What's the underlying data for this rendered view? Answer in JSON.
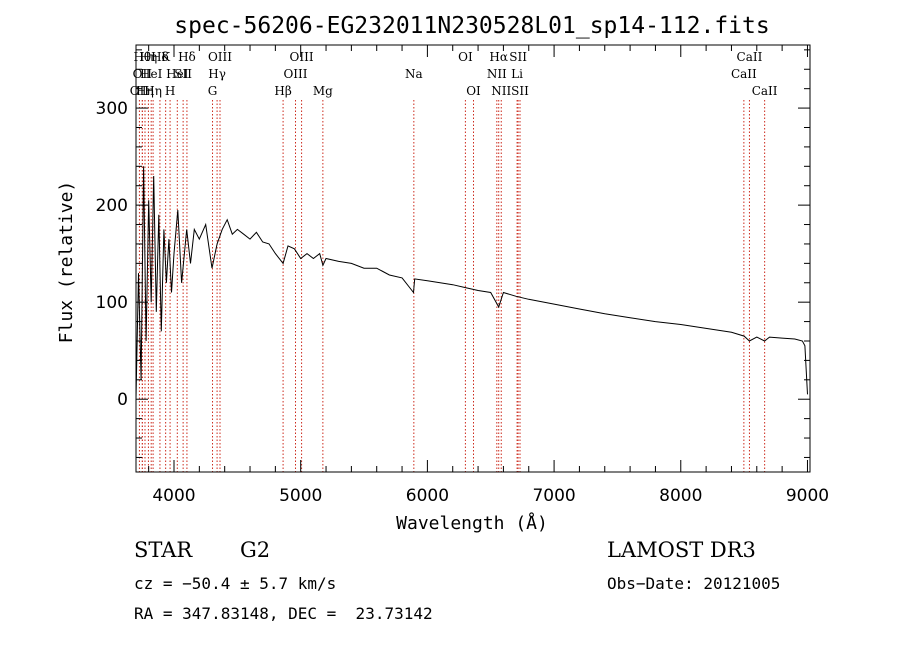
{
  "chart_data": {
    "type": "line",
    "title": "spec-56206-EG232011N230528L01_sp14-112.fits",
    "xlabel": "Wavelength (Å)",
    "ylabel": "Flux (relative)",
    "xlim": [
      3700,
      9020
    ],
    "ylim": [
      -75,
      365
    ],
    "xticks": [
      4000,
      5000,
      6000,
      7000,
      8000,
      9000
    ],
    "yticks": [
      0,
      100,
      200,
      300
    ],
    "series": [
      {
        "name": "flux",
        "x": [
          3700,
          3720,
          3740,
          3760,
          3780,
          3800,
          3820,
          3840,
          3860,
          3880,
          3900,
          3920,
          3940,
          3960,
          3980,
          4000,
          4030,
          4060,
          4100,
          4130,
          4160,
          4200,
          4250,
          4300,
          4340,
          4380,
          4420,
          4460,
          4500,
          4550,
          4600,
          4650,
          4700,
          4750,
          4800,
          4861,
          4900,
          4950,
          5000,
          5050,
          5100,
          5150,
          5175,
          5200,
          5300,
          5400,
          5500,
          5600,
          5700,
          5800,
          5890,
          5900,
          6000,
          6100,
          6200,
          6300,
          6400,
          6500,
          6563,
          6600,
          6700,
          6800,
          7000,
          7200,
          7400,
          7600,
          7800,
          8000,
          8200,
          8400,
          8500,
          8542,
          8600,
          8662,
          8700,
          8800,
          8900,
          8960,
          8980,
          9000
        ],
        "y": [
          0,
          130,
          20,
          240,
          60,
          205,
          100,
          230,
          90,
          190,
          70,
          175,
          120,
          165,
          110,
          150,
          195,
          120,
          175,
          140,
          175,
          165,
          180,
          135,
          160,
          175,
          185,
          170,
          175,
          170,
          165,
          172,
          162,
          160,
          150,
          140,
          158,
          155,
          145,
          150,
          145,
          150,
          138,
          145,
          142,
          140,
          135,
          135,
          128,
          125,
          110,
          124,
          122,
          120,
          118,
          115,
          112,
          110,
          95,
          110,
          106,
          103,
          98,
          93,
          88,
          84,
          80,
          77,
          73,
          69,
          65,
          60,
          64,
          60,
          64,
          63,
          62,
          60,
          55,
          5
        ]
      }
    ],
    "line_markers": [
      {
        "x": 3727,
        "row": 2,
        "label": "OII"
      },
      {
        "x": 3750,
        "row": 0,
        "label": "Hθ"
      },
      {
        "x": 3750,
        "row": 1,
        "label": "OII"
      },
      {
        "x": 3771,
        "row": 2,
        "label": "Hη"
      },
      {
        "x": 3798,
        "row": 0,
        "label": "Hη"
      },
      {
        "x": 3820,
        "row": 1,
        "label": "HeI"
      },
      {
        "x": 3835,
        "row": 2,
        "label": "Hη"
      },
      {
        "x": 3889,
        "row": 0,
        "label": "Hδ"
      },
      {
        "x": 3934,
        "row": 0,
        "label": "K"
      },
      {
        "x": 3969,
        "row": 2,
        "label": "H"
      },
      {
        "x": 4026,
        "row": 1,
        "label": "HeI"
      },
      {
        "x": 4072,
        "row": 1,
        "label": "SII"
      },
      {
        "x": 4102,
        "row": 0,
        "label": "Hδ"
      },
      {
        "x": 4304,
        "row": 2,
        "label": "G"
      },
      {
        "x": 4340,
        "row": 1,
        "label": "Hγ"
      },
      {
        "x": 4363,
        "row": 0,
        "label": "OIII"
      },
      {
        "x": 4861,
        "row": 2,
        "label": "Hβ"
      },
      {
        "x": 4959,
        "row": 1,
        "label": "OIII"
      },
      {
        "x": 5007,
        "row": 0,
        "label": "OIII"
      },
      {
        "x": 5175,
        "row": 2,
        "label": "Mg"
      },
      {
        "x": 5893,
        "row": 1,
        "label": "Na"
      },
      {
        "x": 6300,
        "row": 0,
        "label": "OI"
      },
      {
        "x": 6364,
        "row": 2,
        "label": "OI"
      },
      {
        "x": 6548,
        "row": 1,
        "label": "NII"
      },
      {
        "x": 6563,
        "row": 0,
        "label": "Hα"
      },
      {
        "x": 6583,
        "row": 2,
        "label": "NII"
      },
      {
        "x": 6708,
        "row": 1,
        "label": "Li"
      },
      {
        "x": 6716,
        "row": 0,
        "label": "SII"
      },
      {
        "x": 6731,
        "row": 2,
        "label": "SII"
      },
      {
        "x": 8498,
        "row": 1,
        "label": "CaII"
      },
      {
        "x": 8542,
        "row": 0,
        "label": "CaII"
      },
      {
        "x": 8662,
        "row": 2,
        "label": "CaII"
      }
    ]
  },
  "footer": {
    "class_label": "STAR",
    "subclass": "G2",
    "survey": "LAMOST DR3",
    "cz": "cz = −50.4 ± 5.7 km/s",
    "obs_date": "Obs−Date: 20121005",
    "coords": "RA = 347.83148, DEC =  23.73142"
  },
  "colors": {
    "spectrum": "#000000",
    "marker": "#cc2b1d",
    "axis": "#000000"
  }
}
